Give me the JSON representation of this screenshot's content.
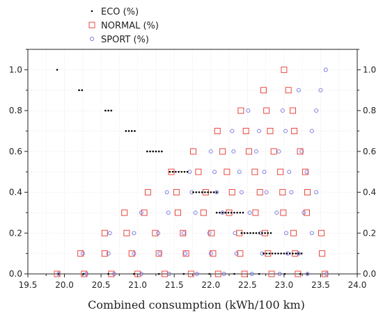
{
  "chart_data": {
    "type": "scatter",
    "title": "",
    "xlabel": "Combined consumption (kWh/100 km)",
    "ylabel": "",
    "xlim": [
      19.5,
      24.0
    ],
    "ylim": [
      0.0,
      1.1
    ],
    "x_ticks": [
      "19.5",
      "20.0",
      "20.5",
      "21.0",
      "21.5",
      "22.0",
      "22.5",
      "23.0",
      "23.5",
      "24.0"
    ],
    "y_ticks": [
      "0.0",
      "0.2",
      "0.4",
      "0.6",
      "0.8",
      "1.0"
    ],
    "grid": true,
    "legend_position": "top-left outside",
    "series": [
      {
        "name": "ECO (%)",
        "marker": "dot",
        "color": "#000000",
        "points": [
          [
            19.92,
            0.0
          ],
          [
            20.26,
            0.0
          ],
          [
            20.6,
            0.0
          ],
          [
            20.95,
            0.0
          ],
          [
            21.29,
            0.0
          ],
          [
            21.63,
            0.0
          ],
          [
            21.98,
            0.0
          ],
          [
            22.32,
            0.0
          ],
          [
            22.66,
            0.0
          ],
          [
            23.01,
            0.0
          ],
          [
            23.22,
            0.0
          ],
          [
            23.32,
            0.0
          ],
          [
            19.9,
            1.0
          ],
          [
            20.2,
            0.9
          ],
          [
            20.24,
            0.9
          ],
          [
            20.56,
            0.8
          ],
          [
            20.6,
            0.8
          ],
          [
            20.64,
            0.8
          ],
          [
            20.84,
            0.7
          ],
          [
            20.88,
            0.7
          ],
          [
            20.92,
            0.7
          ],
          [
            20.96,
            0.7
          ],
          [
            21.13,
            0.6
          ],
          [
            21.17,
            0.6
          ],
          [
            21.21,
            0.6
          ],
          [
            21.25,
            0.6
          ],
          [
            21.29,
            0.6
          ],
          [
            21.33,
            0.6
          ],
          [
            21.44,
            0.5
          ],
          [
            21.48,
            0.5
          ],
          [
            21.52,
            0.5
          ],
          [
            21.56,
            0.5
          ],
          [
            21.6,
            0.5
          ],
          [
            21.64,
            0.5
          ],
          [
            21.68,
            0.5
          ],
          [
            21.76,
            0.4
          ],
          [
            21.8,
            0.4
          ],
          [
            21.84,
            0.4
          ],
          [
            21.88,
            0.4
          ],
          [
            21.92,
            0.4
          ],
          [
            21.96,
            0.4
          ],
          [
            22.0,
            0.4
          ],
          [
            22.04,
            0.4
          ],
          [
            22.08,
            0.4
          ],
          [
            22.08,
            0.3
          ],
          [
            22.12,
            0.3
          ],
          [
            22.16,
            0.3
          ],
          [
            22.2,
            0.3
          ],
          [
            22.24,
            0.3
          ],
          [
            22.28,
            0.3
          ],
          [
            22.32,
            0.3
          ],
          [
            22.36,
            0.3
          ],
          [
            22.4,
            0.3
          ],
          [
            22.44,
            0.3
          ],
          [
            22.42,
            0.2
          ],
          [
            22.46,
            0.2
          ],
          [
            22.5,
            0.2
          ],
          [
            22.54,
            0.2
          ],
          [
            22.58,
            0.2
          ],
          [
            22.62,
            0.2
          ],
          [
            22.66,
            0.2
          ],
          [
            22.7,
            0.2
          ],
          [
            22.74,
            0.2
          ],
          [
            22.78,
            0.2
          ],
          [
            22.82,
            0.2
          ],
          [
            22.72,
            0.1
          ],
          [
            22.76,
            0.1
          ],
          [
            22.8,
            0.1
          ],
          [
            22.84,
            0.1
          ],
          [
            22.88,
            0.1
          ],
          [
            22.92,
            0.1
          ],
          [
            22.96,
            0.1
          ],
          [
            23.0,
            0.1
          ],
          [
            23.04,
            0.1
          ],
          [
            23.08,
            0.1
          ],
          [
            23.12,
            0.1
          ],
          [
            23.16,
            0.1
          ],
          [
            23.2,
            0.1
          ],
          [
            23.24,
            0.1
          ]
        ]
      },
      {
        "name": "NORMAL (%)",
        "marker": "square",
        "color": "#e8473f",
        "points": [
          [
            19.9,
            0.0
          ],
          [
            20.27,
            0.0
          ],
          [
            20.64,
            0.0
          ],
          [
            21.0,
            0.0
          ],
          [
            21.37,
            0.0
          ],
          [
            21.73,
            0.0
          ],
          [
            22.1,
            0.0
          ],
          [
            22.46,
            0.0
          ],
          [
            22.83,
            0.0
          ],
          [
            23.19,
            0.0
          ],
          [
            23.56,
            0.0
          ],
          [
            20.22,
            0.1
          ],
          [
            20.55,
            0.1
          ],
          [
            20.92,
            0.1
          ],
          [
            21.29,
            0.1
          ],
          [
            21.66,
            0.1
          ],
          [
            22.03,
            0.1
          ],
          [
            22.4,
            0.1
          ],
          [
            22.78,
            0.1
          ],
          [
            23.15,
            0.1
          ],
          [
            23.52,
            0.1
          ],
          [
            20.55,
            0.2
          ],
          [
            20.85,
            0.2
          ],
          [
            21.24,
            0.2
          ],
          [
            21.62,
            0.2
          ],
          [
            22.01,
            0.2
          ],
          [
            22.39,
            0.2
          ],
          [
            22.74,
            0.2
          ],
          [
            23.13,
            0.2
          ],
          [
            23.51,
            0.2
          ],
          [
            20.82,
            0.3
          ],
          [
            21.09,
            0.3
          ],
          [
            21.55,
            0.3
          ],
          [
            21.9,
            0.3
          ],
          [
            22.25,
            0.3
          ],
          [
            22.61,
            0.3
          ],
          [
            22.99,
            0.3
          ],
          [
            23.31,
            0.3
          ],
          [
            21.14,
            0.4
          ],
          [
            21.53,
            0.4
          ],
          [
            21.93,
            0.4
          ],
          [
            22.29,
            0.4
          ],
          [
            22.67,
            0.4
          ],
          [
            22.98,
            0.4
          ],
          [
            23.32,
            0.4
          ],
          [
            21.46,
            0.5
          ],
          [
            21.83,
            0.5
          ],
          [
            22.22,
            0.5
          ],
          [
            22.6,
            0.5
          ],
          [
            22.95,
            0.5
          ],
          [
            23.29,
            0.5
          ],
          [
            21.76,
            0.6
          ],
          [
            22.16,
            0.6
          ],
          [
            22.52,
            0.6
          ],
          [
            22.86,
            0.6
          ],
          [
            23.22,
            0.6
          ],
          [
            22.09,
            0.7
          ],
          [
            22.48,
            0.7
          ],
          [
            22.81,
            0.7
          ],
          [
            23.14,
            0.7
          ],
          [
            22.41,
            0.8
          ],
          [
            22.76,
            0.8
          ],
          [
            23.12,
            0.8
          ],
          [
            22.72,
            0.9
          ],
          [
            23.06,
            0.9
          ],
          [
            23.0,
            1.0
          ]
        ]
      },
      {
        "name": "SPORT (%)",
        "marker": "circle",
        "color": "#7070e0",
        "points": [
          [
            19.92,
            0.0
          ],
          [
            20.3,
            0.0
          ],
          [
            20.68,
            0.0
          ],
          [
            21.05,
            0.0
          ],
          [
            21.43,
            0.0
          ],
          [
            21.81,
            0.0
          ],
          [
            22.18,
            0.0
          ],
          [
            22.56,
            0.0
          ],
          [
            22.94,
            0.0
          ],
          [
            23.32,
            0.0
          ],
          [
            23.58,
            0.0
          ],
          [
            20.25,
            0.1
          ],
          [
            20.6,
            0.1
          ],
          [
            20.95,
            0.1
          ],
          [
            21.3,
            0.1
          ],
          [
            21.65,
            0.1
          ],
          [
            22.0,
            0.1
          ],
          [
            22.35,
            0.1
          ],
          [
            22.7,
            0.1
          ],
          [
            23.05,
            0.1
          ],
          [
            23.2,
            0.1
          ],
          [
            20.62,
            0.2
          ],
          [
            20.95,
            0.2
          ],
          [
            21.28,
            0.2
          ],
          [
            21.63,
            0.2
          ],
          [
            21.98,
            0.2
          ],
          [
            22.33,
            0.2
          ],
          [
            22.68,
            0.2
          ],
          [
            23.03,
            0.2
          ],
          [
            23.38,
            0.2
          ],
          [
            21.05,
            0.3
          ],
          [
            21.42,
            0.3
          ],
          [
            21.79,
            0.3
          ],
          [
            22.16,
            0.3
          ],
          [
            22.53,
            0.3
          ],
          [
            22.9,
            0.3
          ],
          [
            23.27,
            0.3
          ],
          [
            21.4,
            0.4
          ],
          [
            21.74,
            0.4
          ],
          [
            22.08,
            0.4
          ],
          [
            22.42,
            0.4
          ],
          [
            22.76,
            0.4
          ],
          [
            23.1,
            0.4
          ],
          [
            23.44,
            0.4
          ],
          [
            21.71,
            0.5
          ],
          [
            22.05,
            0.5
          ],
          [
            22.39,
            0.5
          ],
          [
            22.73,
            0.5
          ],
          [
            23.07,
            0.5
          ],
          [
            23.31,
            0.5
          ],
          [
            22.0,
            0.6
          ],
          [
            22.31,
            0.6
          ],
          [
            22.62,
            0.6
          ],
          [
            22.93,
            0.6
          ],
          [
            23.24,
            0.6
          ],
          [
            22.29,
            0.7
          ],
          [
            22.66,
            0.7
          ],
          [
            23.02,
            0.7
          ],
          [
            23.38,
            0.7
          ],
          [
            22.51,
            0.8
          ],
          [
            22.98,
            0.8
          ],
          [
            23.44,
            0.8
          ],
          [
            23.2,
            0.9
          ],
          [
            23.5,
            0.9
          ],
          [
            23.57,
            1.0
          ]
        ]
      }
    ]
  }
}
